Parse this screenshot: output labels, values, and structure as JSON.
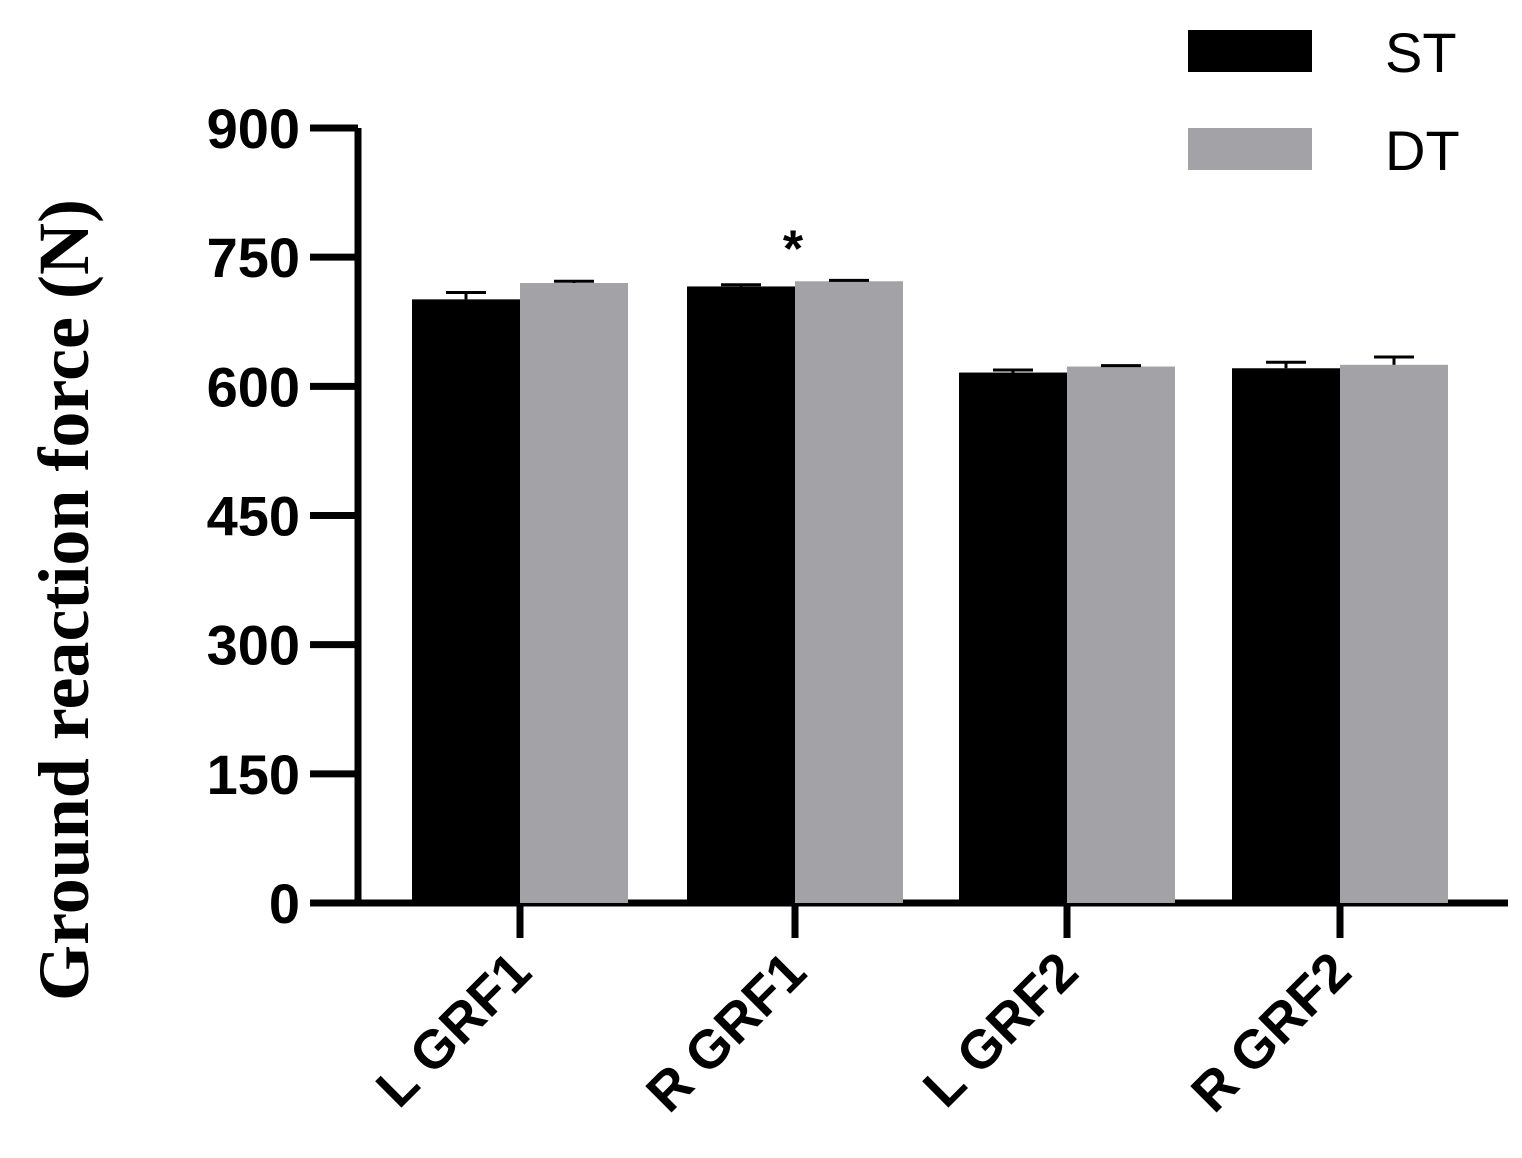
{
  "chart_data": {
    "type": "bar",
    "ylabel": "Ground reaction force (N)",
    "xlabel": "",
    "ylim": [
      0,
      900
    ],
    "yticks": [
      0,
      150,
      300,
      450,
      600,
      750,
      900
    ],
    "categories": [
      "L GRF1",
      "R GRF1",
      "L GRF2",
      "R GRF2"
    ],
    "series": [
      {
        "name": "ST",
        "color": "#000000",
        "values": [
          701,
          716,
          616,
          621
        ],
        "errors": [
          8,
          2,
          3,
          7
        ]
      },
      {
        "name": "DT",
        "color": "#a3a2a7",
        "values": [
          720,
          722,
          623,
          625
        ],
        "errors": [
          2,
          1,
          1,
          9
        ]
      }
    ],
    "legend_position": "top-right",
    "annotations": [
      {
        "category": "R GRF1",
        "text": "*"
      }
    ],
    "grid": false
  }
}
